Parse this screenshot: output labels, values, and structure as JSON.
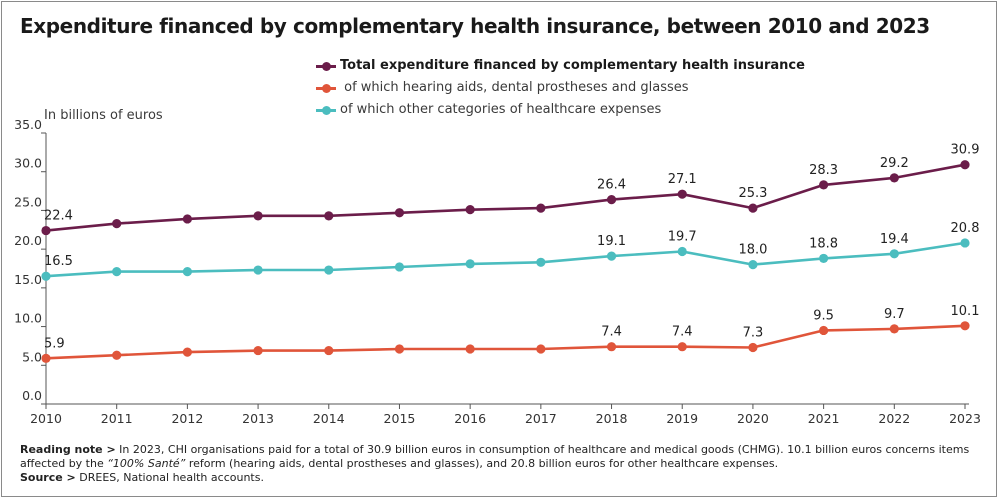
{
  "title": "Expenditure financed by complementary health insurance, between 2010 and 2023",
  "units_label": "In billions of euros",
  "legend": [
    {
      "label": "Total expenditure financed by complementary health insurance",
      "color": "#6b1d4a",
      "bold": true
    },
    {
      "label": " of which hearing aids, dental prostheses and glasses",
      "color": "#e0553a",
      "bold": false
    },
    {
      "label": "of which other categories of healthcare expenses",
      "color": "#4bbdbf",
      "bold": false
    }
  ],
  "chart_data": {
    "type": "line",
    "title": "Expenditure financed by complementary health insurance, between 2010 and 2023",
    "xlabel": "",
    "ylabel": "In billions of euros",
    "x": [
      "2010",
      "2011",
      "2012",
      "2013",
      "2014",
      "2015",
      "2016",
      "2017",
      "2018",
      "2019",
      "2020",
      "2021",
      "2022",
      "2023"
    ],
    "ylim": [
      0,
      35
    ],
    "yticks": [
      "0.0",
      "5.0",
      "10.0",
      "15.0",
      "20.0",
      "25.0",
      "30.0",
      "35.0"
    ],
    "grid": false,
    "legend_position": "top-center",
    "series": [
      {
        "name": "Total expenditure financed by complementary health insurance",
        "color": "#6b1d4a",
        "values": [
          22.4,
          23.3,
          23.9,
          24.3,
          24.3,
          24.7,
          25.1,
          25.3,
          26.4,
          27.1,
          25.3,
          28.3,
          29.2,
          30.9
        ],
        "labels": [
          "22.4",
          "",
          "",
          "",
          "",
          "",
          "",
          "",
          "26.4",
          "27.1",
          "25.3",
          "28.3",
          "29.2",
          "30.9"
        ]
      },
      {
        "name": "of which hearing aids, dental prostheses and glasses",
        "color": "#e0553a",
        "values": [
          5.9,
          6.3,
          6.7,
          6.9,
          6.9,
          7.1,
          7.1,
          7.1,
          7.4,
          7.4,
          7.3,
          9.5,
          9.7,
          10.1
        ],
        "labels": [
          "5.9",
          "",
          "",
          "",
          "",
          "",
          "",
          "",
          "7.4",
          "7.4",
          "7.3",
          "9.5",
          "9.7",
          "10.1"
        ]
      },
      {
        "name": "of which other categories of healthcare expenses",
        "color": "#4bbdbf",
        "values": [
          16.5,
          17.1,
          17.1,
          17.3,
          17.3,
          17.7,
          18.1,
          18.3,
          19.1,
          19.7,
          18.0,
          18.8,
          19.4,
          20.8
        ],
        "labels": [
          "16.5",
          "",
          "",
          "",
          "",
          "",
          "",
          "",
          "19.1",
          "19.7",
          "18.0",
          "18.8",
          "19.4",
          "20.8"
        ]
      }
    ]
  },
  "footer": {
    "reading_note_prefix": "Reading note >",
    "reading_note_text": " In 2023, CHI organisations paid for a total of 30.9 billion euros in consumption of healthcare and medical goods (CHMG). 10.1 billion euros concerns items affected by the ",
    "reading_note_italic": "“100% Santé”",
    "reading_note_text2": " reform (hearing aids, dental prostheses and glasses), and 20.8 billion euros for other healthcare expenses.",
    "source_prefix": "Source >",
    "source_text": " DREES, National health accounts."
  }
}
